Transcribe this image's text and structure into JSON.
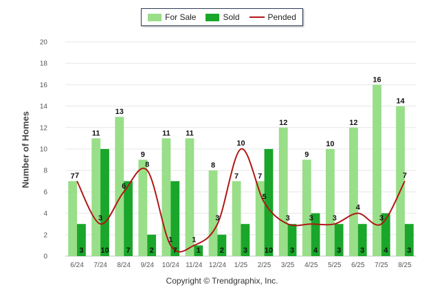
{
  "chart_data": {
    "type": "bar",
    "title": "",
    "xlabel": "",
    "ylabel": "Number of Homes",
    "ylim": [
      0,
      20
    ],
    "yticks": [
      0,
      2,
      4,
      6,
      8,
      10,
      12,
      14,
      16,
      18,
      20
    ],
    "grid": true,
    "legend_position": "top-center",
    "categories": [
      "6/24",
      "7/24",
      "8/24",
      "9/24",
      "10/24",
      "11/24",
      "12/24",
      "1/25",
      "2/25",
      "3/25",
      "4/25",
      "5/25",
      "6/25",
      "7/25",
      "8/25"
    ],
    "series": [
      {
        "name": "For Sale",
        "type": "bar",
        "color": "#99de88",
        "values": [
          7,
          11,
          13,
          9,
          11,
          11,
          8,
          7,
          7,
          12,
          9,
          10,
          12,
          16,
          14
        ]
      },
      {
        "name": "Sold",
        "type": "bar",
        "color": "#1aa62a",
        "values": [
          3,
          10,
          7,
          2,
          7,
          1,
          2,
          3,
          10,
          3,
          4,
          3,
          3,
          4,
          3
        ]
      },
      {
        "name": "Pended",
        "type": "line",
        "color": "#b01515",
        "values": [
          7,
          3,
          6,
          8,
          1,
          1,
          3,
          10,
          5,
          3,
          3,
          3,
          4,
          3,
          7
        ]
      }
    ]
  },
  "copyright": "Copyright © Trendgraphix, Inc."
}
